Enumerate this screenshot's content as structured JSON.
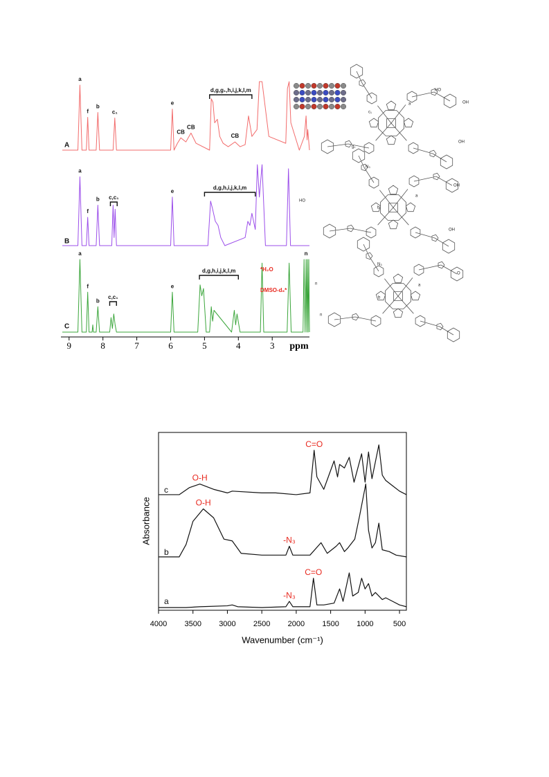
{
  "chart_data": [
    {
      "type": "line",
      "x_label": "ppm",
      "xlim": [
        9.2,
        1.9
      ],
      "xticks": [
        9,
        8,
        7,
        6,
        5,
        4,
        3
      ],
      "annotation_color": "#111111",
      "series": [
        {
          "name": "A",
          "color": "#f26b6b",
          "x": [
            9.2,
            8.74,
            8.68,
            8.62,
            8.49,
            8.45,
            8.41,
            8.2,
            8.15,
            8.1,
            7.7,
            7.65,
            7.6,
            6.0,
            5.95,
            5.9,
            5.8,
            5.7,
            5.55,
            5.4,
            5.25,
            4.85,
            4.8,
            4.75,
            4.7,
            4.62,
            4.55,
            4.45,
            4.3,
            4.1,
            3.95,
            3.8,
            3.7,
            3.6,
            3.45,
            3.38,
            3.3,
            3.1,
            2.6,
            2.55,
            2.5,
            2.45,
            2.2,
            2.05,
            2.0,
            1.97,
            1.95,
            1.9
          ],
          "values": [
            0,
            0,
            95,
            0,
            0,
            48,
            0,
            0,
            55,
            0,
            0,
            47,
            0,
            0,
            60,
            0,
            10,
            18,
            12,
            25,
            10,
            0,
            75,
            70,
            40,
            45,
            20,
            10,
            5,
            12,
            5,
            8,
            50,
            20,
            30,
            100,
            100,
            20,
            10,
            90,
            100,
            40,
            0,
            20,
            50,
            15,
            30,
            0
          ],
          "annotations": [
            {
              "text": "a",
              "x": 8.68
            },
            {
              "text": "f",
              "x": 8.45
            },
            {
              "text": "b",
              "x": 8.15
            },
            {
              "text": "c₁",
              "x": 7.65
            },
            {
              "text": "e",
              "x": 5.95
            },
            {
              "text": "CB",
              "x": 5.7
            },
            {
              "text": "CB",
              "x": 5.4
            },
            {
              "text": "CB",
              "x": 4.1
            },
            {
              "text": "d,g,g₁,h,i,j,k,l,m",
              "x": [
                4.85,
                3.6
              ]
            }
          ],
          "structure_labels": [
            "HO",
            "OH",
            "OH",
            "g₁",
            "c₁",
            "a"
          ]
        },
        {
          "name": "B",
          "color": "#9b4dea",
          "x": [
            9.2,
            8.74,
            8.68,
            8.62,
            8.49,
            8.45,
            8.41,
            8.2,
            8.15,
            8.1,
            7.74,
            7.7,
            7.67,
            7.64,
            7.6,
            6.0,
            5.95,
            5.9,
            4.9,
            4.82,
            4.76,
            4.68,
            4.6,
            4.52,
            4.4,
            3.8,
            3.72,
            3.66,
            3.6,
            3.5,
            3.44,
            3.38,
            3.3,
            3.2,
            2.58,
            2.52,
            2.46,
            2.2,
            1.9
          ],
          "values": [
            0,
            0,
            85,
            0,
            0,
            35,
            0,
            0,
            50,
            0,
            0,
            50,
            10,
            45,
            0,
            0,
            60,
            0,
            0,
            55,
            45,
            30,
            25,
            10,
            0,
            10,
            30,
            25,
            40,
            20,
            100,
            60,
            100,
            0,
            0,
            95,
            0,
            0,
            0
          ],
          "annotations": [
            {
              "text": "a",
              "x": 8.68
            },
            {
              "text": "f",
              "x": 8.45
            },
            {
              "text": "b",
              "x": 8.15
            },
            {
              "text": "c,c₁",
              "x": [
                7.78,
                7.58
              ]
            },
            {
              "text": "e",
              "x": 5.95
            },
            {
              "text": "d,g,h,i,j,k,l,m",
              "x": [
                5.0,
                3.5
              ]
            }
          ],
          "structure_labels": [
            "N₃",
            "HO",
            "OH",
            "OH",
            "a",
            "b"
          ]
        },
        {
          "name": "C",
          "color": "#3aa53a",
          "x": [
            9.2,
            8.74,
            8.68,
            8.62,
            8.49,
            8.45,
            8.41,
            8.32,
            8.3,
            8.28,
            8.2,
            8.15,
            8.1,
            7.8,
            7.76,
            7.72,
            7.68,
            7.64,
            7.6,
            6.0,
            5.95,
            5.9,
            5.2,
            5.13,
            5.08,
            5.03,
            4.95,
            4.85,
            4.8,
            4.76,
            4.72,
            4.2,
            4.12,
            4.08,
            4.04,
            3.95,
            3.35,
            3.3,
            3.25,
            2.56,
            2.5,
            2.44,
            2.09,
            2.06,
            2.03,
            2.0,
            1.98,
            1.96,
            1.94,
            1.92,
            1.9
          ],
          "values": [
            0,
            0,
            100,
            0,
            0,
            55,
            0,
            0,
            10,
            0,
            0,
            35,
            0,
            0,
            20,
            5,
            25,
            10,
            0,
            0,
            55,
            0,
            0,
            65,
            50,
            60,
            0,
            0,
            35,
            15,
            30,
            0,
            30,
            10,
            25,
            0,
            0,
            95,
            0,
            0,
            95,
            0,
            0,
            100,
            0,
            100,
            0,
            100,
            0,
            100,
            0
          ],
          "annotations": [
            {
              "text": "a",
              "x": 8.68
            },
            {
              "text": "f",
              "x": 8.45
            },
            {
              "text": "b",
              "x": 8.15
            },
            {
              "text": "c,c₁",
              "x": [
                7.8,
                7.6
              ]
            },
            {
              "text": "e",
              "x": 5.95
            },
            {
              "text": "d,g,h,i,j,k,l,m",
              "x": [
                5.15,
                4.0
              ]
            },
            {
              "text": "*H₂O",
              "color": "#e8281e"
            },
            {
              "text": "DMSO-d₆*",
              "color": "#e8281e"
            },
            {
              "text": "n",
              "x": 2.0
            }
          ],
          "structure_labels": [
            "N₃",
            "n",
            "n",
            "O",
            "a",
            "b"
          ]
        }
      ]
    },
    {
      "type": "line",
      "x_label": "Wavenumber (cm⁻¹)",
      "y_label": "Absorbance",
      "xlim": [
        4000,
        400
      ],
      "ylim": [
        0,
        100
      ],
      "xticks": [
        4000,
        3500,
        3000,
        2500,
        2000,
        1500,
        1000,
        500
      ],
      "annotation_color": "#e8281e",
      "series": [
        {
          "name": "a",
          "color": "#111111",
          "x": [
            4000,
            3600,
            3400,
            3000,
            2930,
            2850,
            2500,
            2150,
            2100,
            2050,
            1800,
            1750,
            1700,
            1600,
            1450,
            1370,
            1320,
            1230,
            1180,
            1100,
            1050,
            1000,
            950,
            900,
            850,
            800,
            750,
            700,
            600,
            500,
            400
          ],
          "values": [
            1.5,
            1.5,
            2,
            2.5,
            3,
            2,
            1.5,
            2,
            5,
            2,
            2,
            18,
            3,
            3,
            4,
            12,
            5,
            21,
            8,
            10,
            18,
            12,
            15,
            8,
            10,
            8,
            6,
            7,
            5,
            3,
            2
          ],
          "annotations": [
            {
              "text": "-N₃",
              "x": 2100
            },
            {
              "text": "C=O",
              "x": 1750
            }
          ]
        },
        {
          "name": "b",
          "color": "#111111",
          "x": [
            4000,
            3700,
            3600,
            3500,
            3350,
            3200,
            3050,
            2930,
            2800,
            2500,
            2150,
            2100,
            2050,
            1800,
            1640,
            1550,
            1420,
            1370,
            1300,
            1250,
            1150,
            1080,
            1040,
            990,
            950,
            900,
            850,
            800,
            750,
            650,
            550,
            400
          ],
          "values": [
            30,
            30,
            37,
            50,
            57,
            52,
            40,
            39,
            32,
            31,
            31,
            36,
            31,
            31,
            38,
            32,
            36,
            38,
            33,
            35,
            40,
            53,
            61,
            71,
            45,
            35,
            38,
            49,
            34,
            33,
            31,
            30
          ],
          "annotations": [
            {
              "text": "O-H",
              "x": 3350
            },
            {
              "text": "-N₃",
              "x": 2100
            }
          ]
        },
        {
          "name": "c",
          "color": "#111111",
          "x": [
            4000,
            3700,
            3550,
            3400,
            3200,
            3000,
            2930,
            2500,
            2300,
            2000,
            1800,
            1740,
            1700,
            1600,
            1450,
            1400,
            1370,
            1300,
            1230,
            1160,
            1050,
            1000,
            950,
            900,
            800,
            750,
            700,
            600,
            500,
            400
          ],
          "values": [
            65,
            65,
            69,
            71,
            68,
            66,
            67,
            66,
            66,
            65,
            66,
            90,
            75,
            68,
            84,
            75,
            82,
            80,
            86,
            72,
            88,
            72,
            89,
            74,
            93,
            76,
            73,
            70,
            67,
            65
          ],
          "annotations": [
            {
              "text": "O-H",
              "x": 3400
            },
            {
              "text": "C=O",
              "x": 1740
            }
          ]
        }
      ]
    }
  ]
}
